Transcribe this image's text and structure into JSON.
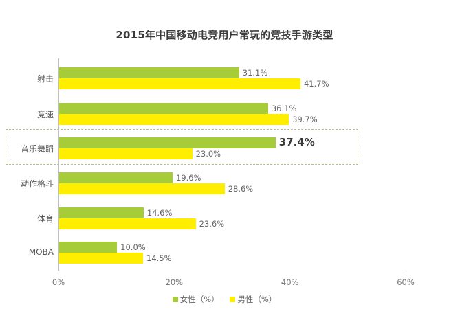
{
  "chart_data": {
    "type": "bar",
    "orientation": "horizontal",
    "title": "2015年中国移动电竞用户常玩的竞技手游类型",
    "categories": [
      "射击",
      "竞速",
      "音乐舞蹈",
      "动作格斗",
      "体育",
      "MOBA"
    ],
    "series": [
      {
        "name": "女性（%）",
        "color": "#a6cc3a",
        "values": [
          31.1,
          36.1,
          37.4,
          19.6,
          14.6,
          10.0
        ]
      },
      {
        "name": "男性（%）",
        "color": "#ffee00",
        "values": [
          41.7,
          39.7,
          23.0,
          28.6,
          23.6,
          14.5
        ]
      }
    ],
    "value_labels": {
      "female": [
        "31.1%",
        "36.1%",
        "37.4%",
        "19.6%",
        "14.6%",
        "10.0%"
      ],
      "male": [
        "41.7%",
        "39.7%",
        "23.0%",
        "28.6%",
        "23.6%",
        "14.5%"
      ]
    },
    "xlabel": "",
    "ylabel": "",
    "xlim": [
      0,
      60
    ],
    "x_ticks": [
      "0%",
      "20%",
      "40%",
      "60%"
    ],
    "grid": false,
    "legend_position": "bottom",
    "highlight": {
      "category": "音乐舞蹈",
      "emphasized_value": "37.4%"
    }
  },
  "title": "2015年中国移动电竞用户常玩的竞技手游类型",
  "legend": {
    "female": "女性（%）",
    "male": "男性（%）"
  }
}
